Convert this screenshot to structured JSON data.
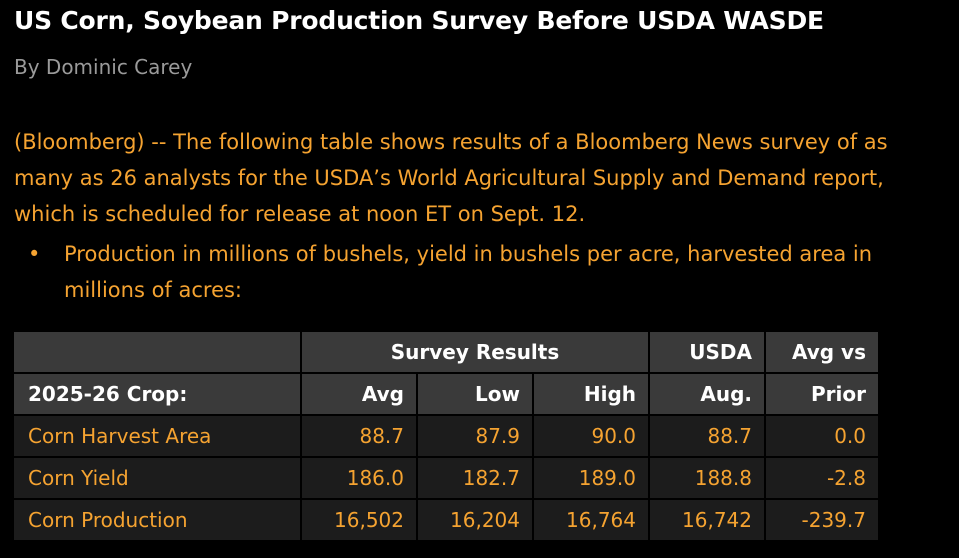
{
  "article": {
    "headline": "US Corn, Soybean Production Survey Before USDA WASDE",
    "byline": "By Dominic Carey",
    "intro": "(Bloomberg) -- The following table shows results of a Bloomberg News survey of as many as 26 analysts for the USDA’s World Agricultural Supply and Demand report, which is scheduled for release at noon ET on Sept. 12.",
    "bullet_marker": "•",
    "bullet": "Production in millions of bushels, yield in bushels per acre, harvested area in millions of acres:"
  },
  "table": {
    "group_headers": {
      "survey": "Survey Results",
      "usda": "USDA",
      "avg_vs": "Avg vs"
    },
    "columns": [
      "2025-26 Crop:",
      "Avg",
      "Low",
      "High",
      "Aug.",
      "Prior"
    ],
    "rows": [
      {
        "crop": "Corn Harvest Area",
        "avg": "88.7",
        "low": "87.9",
        "high": "90.0",
        "aug": "88.7",
        "prior": "0.0"
      },
      {
        "crop": "Corn Yield",
        "avg": "186.0",
        "low": "182.7",
        "high": "189.0",
        "aug": "188.8",
        "prior": "-2.8"
      },
      {
        "crop": "Corn Production",
        "avg": "16,502",
        "low": "16,204",
        "high": "16,764",
        "aug": "16,742",
        "prior": "-239.7"
      }
    ]
  }
}
